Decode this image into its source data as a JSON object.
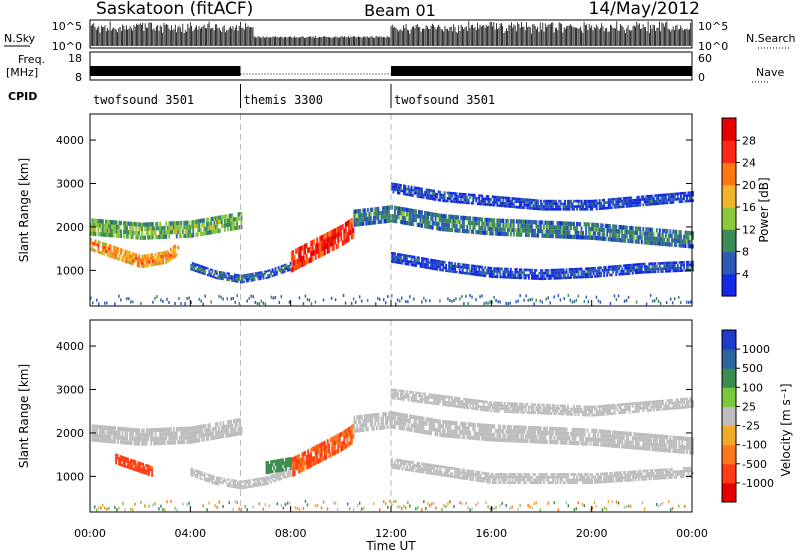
{
  "header": {
    "station": "Saskatoon (fitACF)",
    "beam": "Beam 01",
    "date": "14/May/2012"
  },
  "strip": {
    "nsky_label": "N.Sky",
    "nsky_ticks": [
      "10^5",
      "10^0"
    ],
    "nsearch_label": "N.Search",
    "nsearch_ticks": [
      "10^5",
      "10^0"
    ],
    "freq_label_line1": "Freq.",
    "freq_label_line2": "[MHz]",
    "freq_ticks": [
      "18",
      "8"
    ],
    "nave_label": "Nave",
    "nave_ticks": [
      "60",
      "0"
    ],
    "cpid_label": "CPID",
    "cpid_segments": [
      {
        "label": "twofsound 3501",
        "start": 0,
        "end": 6
      },
      {
        "label": "themis 3300",
        "start": 6,
        "end": 12
      },
      {
        "label": "twofsound 3501",
        "start": 12,
        "end": 24
      }
    ]
  },
  "axes": {
    "xlabel": "Time UT",
    "xticks": [
      "00:00",
      "04:00",
      "08:00",
      "12:00",
      "16:00",
      "20:00",
      "00:00"
    ],
    "ylabel": "Slant Range [km]",
    "yticks": [
      "1000",
      "2000",
      "3000",
      "4000"
    ]
  },
  "colorbars": {
    "power": {
      "label": "Power [dB]",
      "ticks": [
        "4",
        "8",
        "12",
        "16",
        "20",
        "24",
        "28"
      ],
      "colors": [
        "#1428e6",
        "#2d5ab4",
        "#3c8c5a",
        "#8cc83c",
        "#f0b428",
        "#ff7814",
        "#ff2814",
        "#e60000"
      ]
    },
    "velocity": {
      "label": "Velocity [m s⁻¹]",
      "ticks": [
        "1000",
        "500",
        "100",
        "25",
        "-25",
        "-100",
        "-500",
        "-1000"
      ],
      "colors": [
        "#1e3cc8",
        "#2d64a0",
        "#3c8c50",
        "#78c83c",
        "#bebebe",
        "#f0aa28",
        "#ff781e",
        "#ff3c14",
        "#e60000"
      ]
    }
  },
  "chart_data": [
    {
      "type": "heatmap",
      "panel": "power",
      "xlabel": "Time UT",
      "ylabel": "Slant Range [km]",
      "xlim": [
        0,
        24
      ],
      "ylim": [
        180,
        4600
      ],
      "zlim": [
        0,
        30
      ],
      "zlabel": "Power [dB]",
      "bands": [
        {
          "t": [
            0,
            2,
            4,
            5.5,
            6
          ],
          "r_center": [
            2000,
            1900,
            1950,
            2100,
            2150
          ],
          "width": 400,
          "value": 14
        },
        {
          "t": [
            0,
            1,
            2,
            3,
            3.5
          ],
          "r_center": [
            1600,
            1400,
            1200,
            1300,
            1500
          ],
          "width": 300,
          "value": 22
        },
        {
          "t": [
            4,
            5,
            6,
            7,
            8
          ],
          "r_center": [
            1100,
            900,
            800,
            900,
            1100
          ],
          "width": 200,
          "value": 8
        },
        {
          "t": [
            8,
            9,
            10,
            10.5
          ],
          "r_center": [
            1200,
            1500,
            1800,
            2000
          ],
          "width": 500,
          "value": 28
        },
        {
          "t": [
            10.5,
            12,
            14,
            16,
            18,
            20,
            22,
            24
          ],
          "r_center": [
            2200,
            2300,
            2100,
            2000,
            1950,
            1900,
            1800,
            1700
          ],
          "width": 400,
          "value": 10
        },
        {
          "t": [
            12,
            14,
            16,
            18,
            20,
            22,
            24
          ],
          "r_center": [
            1300,
            1100,
            950,
            900,
            950,
            1050,
            1100
          ],
          "width": 250,
          "value": 6
        },
        {
          "t": [
            12,
            14,
            16,
            18,
            20,
            22,
            24
          ],
          "r_center": [
            2900,
            2700,
            2600,
            2500,
            2500,
            2600,
            2700
          ],
          "width": 250,
          "value": 6
        }
      ]
    },
    {
      "type": "heatmap",
      "panel": "velocity",
      "xlabel": "Time UT",
      "ylabel": "Slant Range [km]",
      "xlim": [
        0,
        24
      ],
      "ylim": [
        180,
        4600
      ],
      "zlim": [
        -1000,
        1000
      ],
      "zlabel": "Velocity [m s⁻¹]",
      "bands": [
        {
          "t": [
            0,
            2,
            4,
            5.5,
            6
          ],
          "r_center": [
            2000,
            1900,
            1950,
            2100,
            2150
          ],
          "width": 400,
          "value": 0
        },
        {
          "t": [
            1,
            2,
            2.5
          ],
          "r_center": [
            1400,
            1200,
            1100
          ],
          "width": 250,
          "value": -500
        },
        {
          "t": [
            4,
            5,
            6,
            7,
            8
          ],
          "r_center": [
            1100,
            900,
            800,
            900,
            1100
          ],
          "width": 200,
          "value": 0
        },
        {
          "t": [
            8,
            9,
            10,
            10.5
          ],
          "r_center": [
            1200,
            1500,
            1800,
            2000
          ],
          "width": 450,
          "value": -300
        },
        {
          "t": [
            7,
            8
          ],
          "r_center": [
            1200,
            1300
          ],
          "width": 300,
          "value": 150
        },
        {
          "t": [
            10.5,
            12,
            14,
            16,
            18,
            20,
            22,
            24
          ],
          "r_center": [
            2200,
            2300,
            2100,
            2000,
            1950,
            1900,
            1800,
            1700
          ],
          "width": 400,
          "value": 0
        },
        {
          "t": [
            12,
            16,
            20,
            24
          ],
          "r_center": [
            1300,
            950,
            950,
            1100
          ],
          "width": 250,
          "value": 0
        },
        {
          "t": [
            12,
            16,
            20,
            24
          ],
          "r_center": [
            2900,
            2600,
            2500,
            2700
          ],
          "width": 250,
          "value": 0
        }
      ]
    }
  ]
}
